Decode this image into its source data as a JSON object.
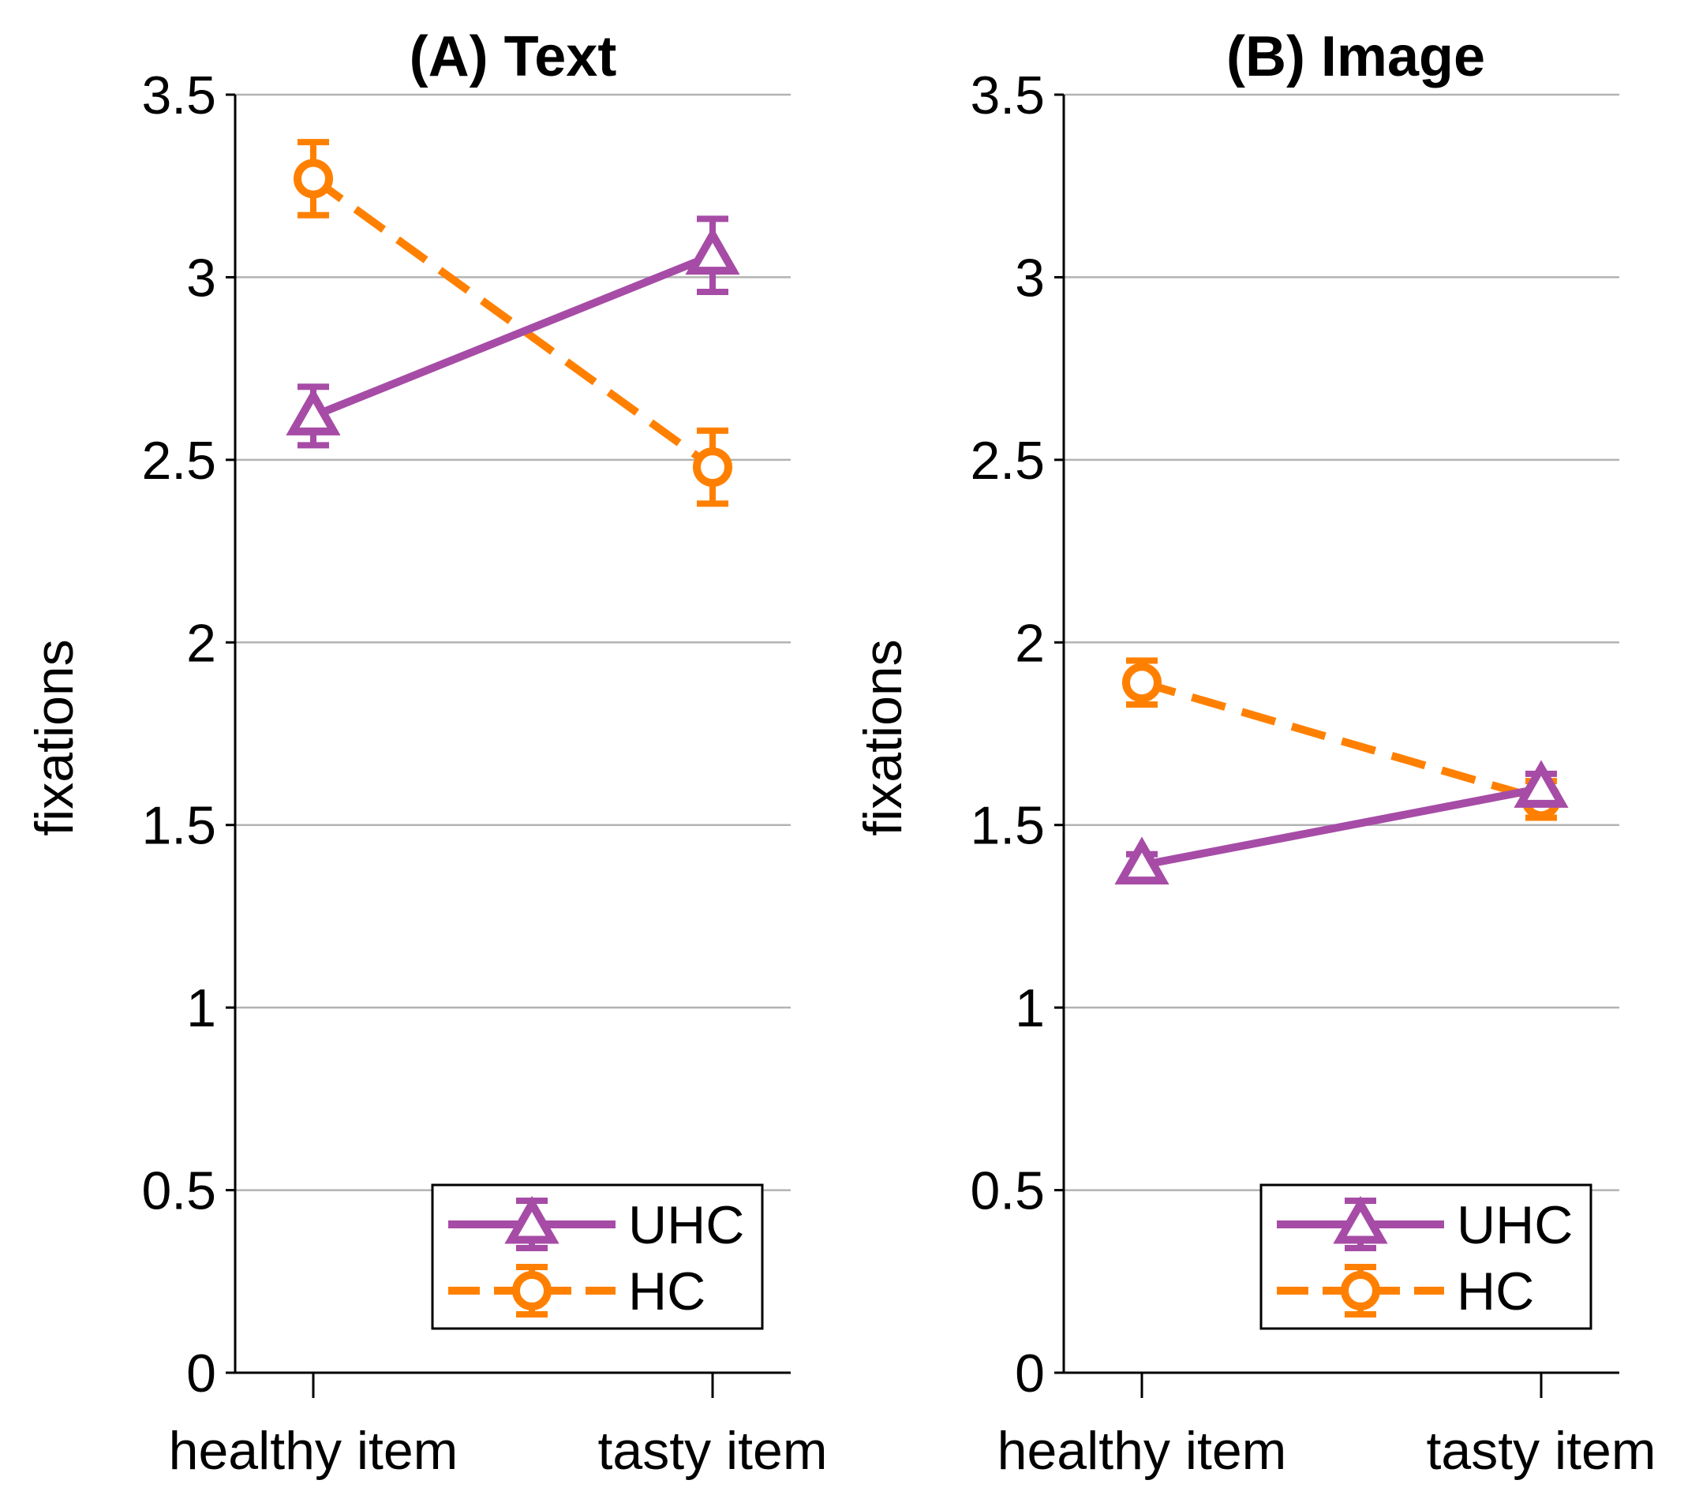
{
  "chart_data": [
    {
      "type": "line",
      "title": "(A) Text",
      "xlabel": "",
      "ylabel": "fixations",
      "ylim": [
        0,
        3.5
      ],
      "yticks": [
        0,
        0.5,
        1,
        1.5,
        2,
        2.5,
        3,
        3.5
      ],
      "ytick_labels": [
        "0",
        "0.5",
        "1",
        "1.5",
        "2",
        "2.5",
        "3",
        "3.5"
      ],
      "grid": true,
      "legend_position": "bottom-right",
      "categories": [
        "healthy item",
        "tasty item"
      ],
      "series": [
        {
          "name": "UHC",
          "values": [
            2.62,
            3.06
          ],
          "error": [
            0.08,
            0.1
          ],
          "color": "#a64ca6",
          "marker": "triangle",
          "line": "solid"
        },
        {
          "name": "HC",
          "values": [
            3.27,
            2.48
          ],
          "error": [
            0.1,
            0.1
          ],
          "color": "#ff8000",
          "marker": "circle",
          "line": "dashed"
        }
      ]
    },
    {
      "type": "line",
      "title": "(B) Image",
      "xlabel": "",
      "ylabel": "fixations",
      "ylim": [
        0,
        3.5
      ],
      "yticks": [
        0,
        0.5,
        1,
        1.5,
        2,
        2.5,
        3,
        3.5
      ],
      "ytick_labels": [
        "0",
        "0.5",
        "1",
        "1.5",
        "2",
        "2.5",
        "3",
        "3.5"
      ],
      "grid": true,
      "legend_position": "bottom-right",
      "categories": [
        "healthy item",
        "tasty item"
      ],
      "series": [
        {
          "name": "UHC",
          "values": [
            1.39,
            1.6
          ],
          "error": [
            0.03,
            0.04
          ],
          "color": "#a64ca6",
          "marker": "triangle",
          "line": "solid"
        },
        {
          "name": "HC",
          "values": [
            1.89,
            1.57
          ],
          "error": [
            0.06,
            0.05
          ],
          "color": "#ff8000",
          "marker": "circle",
          "line": "dashed"
        }
      ]
    }
  ]
}
